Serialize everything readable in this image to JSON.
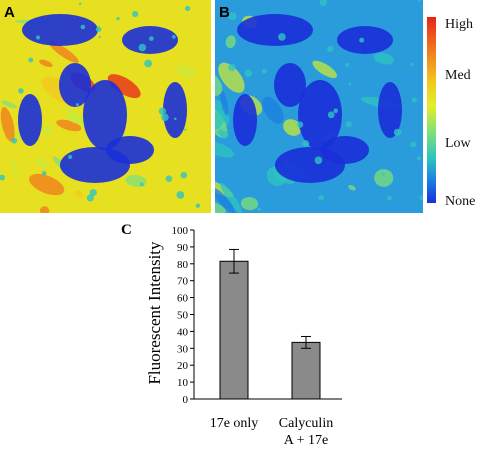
{
  "panels": [
    {
      "letter": "A",
      "base": "#e6e020",
      "spots": [
        "#f07a1e",
        "#c8e838",
        "#f2c81e",
        "#7ee07a",
        "#e8231a"
      ]
    },
    {
      "letter": "B",
      "base": "#2a9cdc",
      "spots": [
        "#2ec4c0",
        "#7ee07a",
        "#c8e838",
        "#1c7fe0",
        "#2ec4c0"
      ]
    }
  ],
  "colorscale": {
    "labels": [
      "High",
      "Med",
      "Low",
      "None"
    ],
    "colors": [
      "#e8231a",
      "#f2c81e",
      "#7ee07a",
      "#1a2fd8"
    ]
  },
  "chart_letter": "C",
  "chart_data": {
    "type": "bar",
    "categories": [
      "17e only",
      "Calyculin A + 17e"
    ],
    "category_lines": [
      [
        "17e only"
      ],
      [
        "Calyculin",
        "A + 17e"
      ]
    ],
    "values": [
      81.5,
      33.5
    ],
    "errors": [
      7,
      3.5
    ],
    "ylabel": "Fluorescent Intensity",
    "ylim": [
      0,
      100
    ],
    "yticks": [
      0,
      10,
      20,
      30,
      40,
      50,
      60,
      70,
      80,
      90,
      100
    ],
    "bar_color": "#8a8a8a",
    "grid": false
  }
}
